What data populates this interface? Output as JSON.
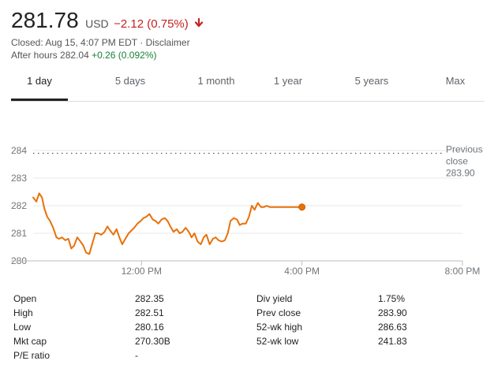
{
  "quote": {
    "price": "281.78",
    "currency": "USD",
    "change": "−2.12 (0.75%)",
    "change_direction": "down",
    "change_icon": "arrow-down-icon",
    "down_color": "#c5221f",
    "up_color": "#188038",
    "closed_text": "Closed: Aug 15, 4:07 PM EDT",
    "separator": "·",
    "disclaimer": "Disclaimer",
    "after_hours_label": "After hours",
    "after_hours_price": "282.04",
    "after_hours_change": "+0.26 (0.092%)"
  },
  "tabs": [
    {
      "label": "1 day",
      "active": true
    },
    {
      "label": "5 days",
      "active": false
    },
    {
      "label": "1 month",
      "active": false
    },
    {
      "label": "1 year",
      "active": false
    },
    {
      "label": "5 years",
      "active": false
    },
    {
      "label": "Max",
      "active": false
    }
  ],
  "chart_data": {
    "type": "line",
    "title": "",
    "xlabel": "",
    "ylabel": "",
    "ylim": [
      280,
      284.6
    ],
    "yticks": [
      "280",
      "281",
      "282",
      "283",
      "284"
    ],
    "xlim": [
      9.3,
      20.0
    ],
    "xticks": [
      {
        "value": 12,
        "label": "12:00 PM"
      },
      {
        "value": 16,
        "label": "4:00 PM"
      },
      {
        "value": 20,
        "label": "8:00 PM"
      }
    ],
    "line_color": "#e8710a",
    "previous_close": {
      "value": 283.9,
      "label_line1": "Previous",
      "label_line2": "close",
      "value_text": "283.90"
    },
    "series": [
      {
        "x": [
          9.3,
          9.38,
          9.45,
          9.52,
          9.58,
          9.65,
          9.72,
          9.8,
          9.88,
          9.95,
          10.02,
          10.1,
          10.18,
          10.25,
          10.32,
          10.4,
          10.48,
          10.55,
          10.62,
          10.7,
          10.78,
          10.85,
          10.92,
          11.0,
          11.08,
          11.15,
          11.22,
          11.3,
          11.38,
          11.45,
          11.52,
          11.6,
          11.68,
          11.75,
          11.82,
          11.9,
          11.98,
          12.05,
          12.12,
          12.2,
          12.28,
          12.35,
          12.42,
          12.5,
          12.58,
          12.65,
          12.72,
          12.8,
          12.88,
          12.95,
          13.02,
          13.1,
          13.18,
          13.25,
          13.32,
          13.4,
          13.48,
          13.55,
          13.62,
          13.7,
          13.78,
          13.85,
          13.92,
          14.0,
          14.08,
          14.15,
          14.22,
          14.3,
          14.38,
          14.45,
          14.52,
          14.6,
          14.68,
          14.75,
          14.82,
          14.9,
          14.98,
          15.05,
          15.12,
          15.2,
          15.28,
          15.35,
          15.42,
          15.5,
          15.58,
          15.65,
          15.72,
          15.8,
          15.88,
          15.95,
          16.0
        ],
        "y": [
          282.3,
          282.15,
          282.45,
          282.3,
          281.9,
          281.6,
          281.45,
          281.2,
          280.85,
          280.8,
          280.85,
          280.75,
          280.8,
          280.45,
          280.55,
          280.85,
          280.7,
          280.55,
          280.3,
          280.25,
          280.65,
          281.0,
          281.0,
          280.95,
          281.05,
          281.25,
          281.1,
          280.95,
          281.15,
          280.85,
          280.6,
          280.8,
          281.0,
          281.1,
          281.2,
          281.35,
          281.45,
          281.55,
          281.6,
          281.7,
          281.5,
          281.45,
          281.35,
          281.5,
          281.55,
          281.45,
          281.25,
          281.05,
          281.15,
          281.0,
          281.05,
          281.2,
          281.05,
          280.85,
          281.0,
          280.7,
          280.6,
          280.85,
          280.95,
          280.6,
          280.8,
          280.85,
          280.75,
          280.7,
          280.75,
          281.0,
          281.45,
          281.55,
          281.5,
          281.3,
          281.35,
          281.35,
          281.6,
          282.0,
          281.85,
          282.1,
          281.95,
          281.95,
          282.0,
          281.95,
          281.95,
          281.95,
          281.95,
          281.95,
          281.95,
          281.95,
          281.95,
          281.95,
          281.95,
          281.95,
          281.95
        ]
      }
    ],
    "last_point": {
      "x": 16.0,
      "y": 281.95
    }
  },
  "stats": {
    "left": [
      {
        "label": "Open",
        "value": "282.35"
      },
      {
        "label": "High",
        "value": "282.51"
      },
      {
        "label": "Low",
        "value": "280.16"
      },
      {
        "label": "Mkt cap",
        "value": "270.30B"
      },
      {
        "label": "P/E ratio",
        "value": "-"
      }
    ],
    "right": [
      {
        "label": "Div yield",
        "value": "1.75%"
      },
      {
        "label": "Prev close",
        "value": "283.90"
      },
      {
        "label": "52-wk high",
        "value": "286.63"
      },
      {
        "label": "52-wk low",
        "value": "241.83"
      }
    ]
  }
}
